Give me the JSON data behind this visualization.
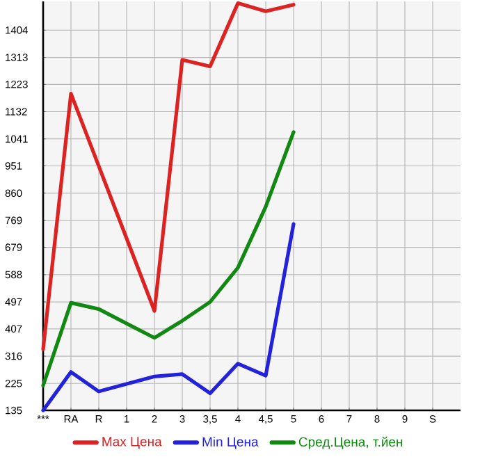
{
  "chart_data": {
    "type": "line",
    "categories": [
      "***",
      "RA",
      "R",
      "1",
      "2",
      "3",
      "3,5",
      "4",
      "4,5",
      "5",
      "6",
      "7",
      "8",
      "9",
      "S"
    ],
    "ylim": [
      135,
      1500
    ],
    "yticks": [
      135,
      225,
      316,
      407,
      497,
      588,
      679,
      769,
      860,
      951,
      1041,
      1132,
      1223,
      1313,
      1404
    ],
    "grid": true,
    "legend": "bottom",
    "marker": "none",
    "line_style": "solid",
    "series": [
      {
        "name": "Max Цена",
        "color": "#dd2222",
        "values": [
          339,
          1192,
          950,
          709,
          467,
          1305,
          1283,
          1494,
          1467,
          1489,
          null,
          null,
          null,
          null,
          null
        ]
      },
      {
        "name": "Min Цена",
        "color": "#2222dd",
        "values": [
          135,
          263,
          198,
          223,
          248,
          256,
          192,
          291,
          251,
          757,
          null,
          null,
          null,
          null,
          null
        ]
      },
      {
        "name": "Сред.Цена, т.йен",
        "color": "#118811",
        "values": [
          218,
          494,
          473,
          425,
          377,
          434,
          497,
          611,
          815,
          1064,
          null,
          null,
          null,
          null,
          null
        ]
      }
    ]
  }
}
